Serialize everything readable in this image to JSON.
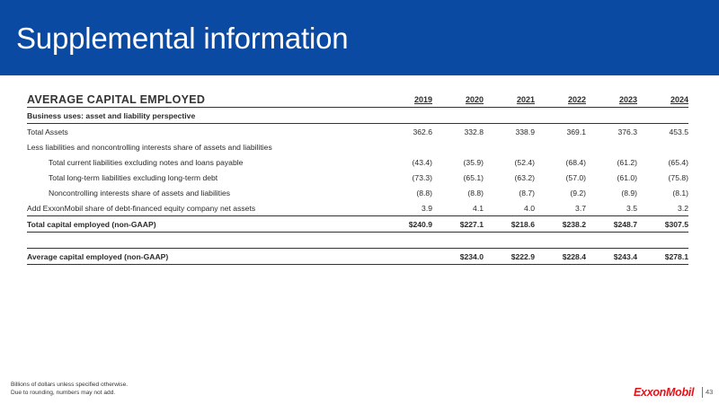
{
  "header": {
    "title": "Supplemental information"
  },
  "table": {
    "title": "AVERAGE CAPITAL EMPLOYED",
    "years": [
      "2019",
      "2020",
      "2021",
      "2022",
      "2023",
      "2024"
    ],
    "section_business": "Business uses: asset and liability perspective",
    "rows": {
      "total_assets": {
        "label": "Total Assets",
        "values": [
          "362.6",
          "332.8",
          "338.9",
          "369.1",
          "376.3",
          "453.5"
        ]
      },
      "less_liab_label": "Less liabilities and noncontrolling interests share of assets and liabilities",
      "current_liab": {
        "label": "Total current liabilities excluding notes and loans payable",
        "values": [
          "(43.4)",
          "(35.9)",
          "(52.4)",
          "(68.4)",
          "(61.2)",
          "(65.4)"
        ]
      },
      "longterm_liab": {
        "label": "Total long-term liabilities excluding long-term debt",
        "values": [
          "(73.3)",
          "(65.1)",
          "(63.2)",
          "(57.0)",
          "(61.0)",
          "(75.8)"
        ]
      },
      "nci": {
        "label": "Noncontrolling interests share of assets and liabilities",
        "values": [
          "(8.8)",
          "(8.8)",
          "(8.7)",
          "(9.2)",
          "(8.9)",
          "(8.1)"
        ]
      },
      "add_share": {
        "label": "Add ExxonMobil share of debt-financed equity company net assets",
        "values": [
          "3.9",
          "4.1",
          "4.0",
          "3.7",
          "3.5",
          "3.2"
        ]
      },
      "total_capital": {
        "label": "Total capital employed (non-GAAP)",
        "values": [
          "$240.9",
          "$227.1",
          "$218.6",
          "$238.2",
          "$248.7",
          "$307.5"
        ]
      },
      "avg_capital": {
        "label": "Average capital employed (non-GAAP)",
        "values": [
          "",
          "$234.0",
          "$222.9",
          "$228.4",
          "$243.4",
          "$278.1"
        ]
      }
    }
  },
  "footer": {
    "note1": "Billions of dollars unless specified otherwise.",
    "note2": "Due to rounding, numbers may not add.",
    "logo": "ExxonMobil",
    "page_number": "43"
  },
  "colors": {
    "banner": "#0b4aa2",
    "logo_red": "#e1141b"
  }
}
